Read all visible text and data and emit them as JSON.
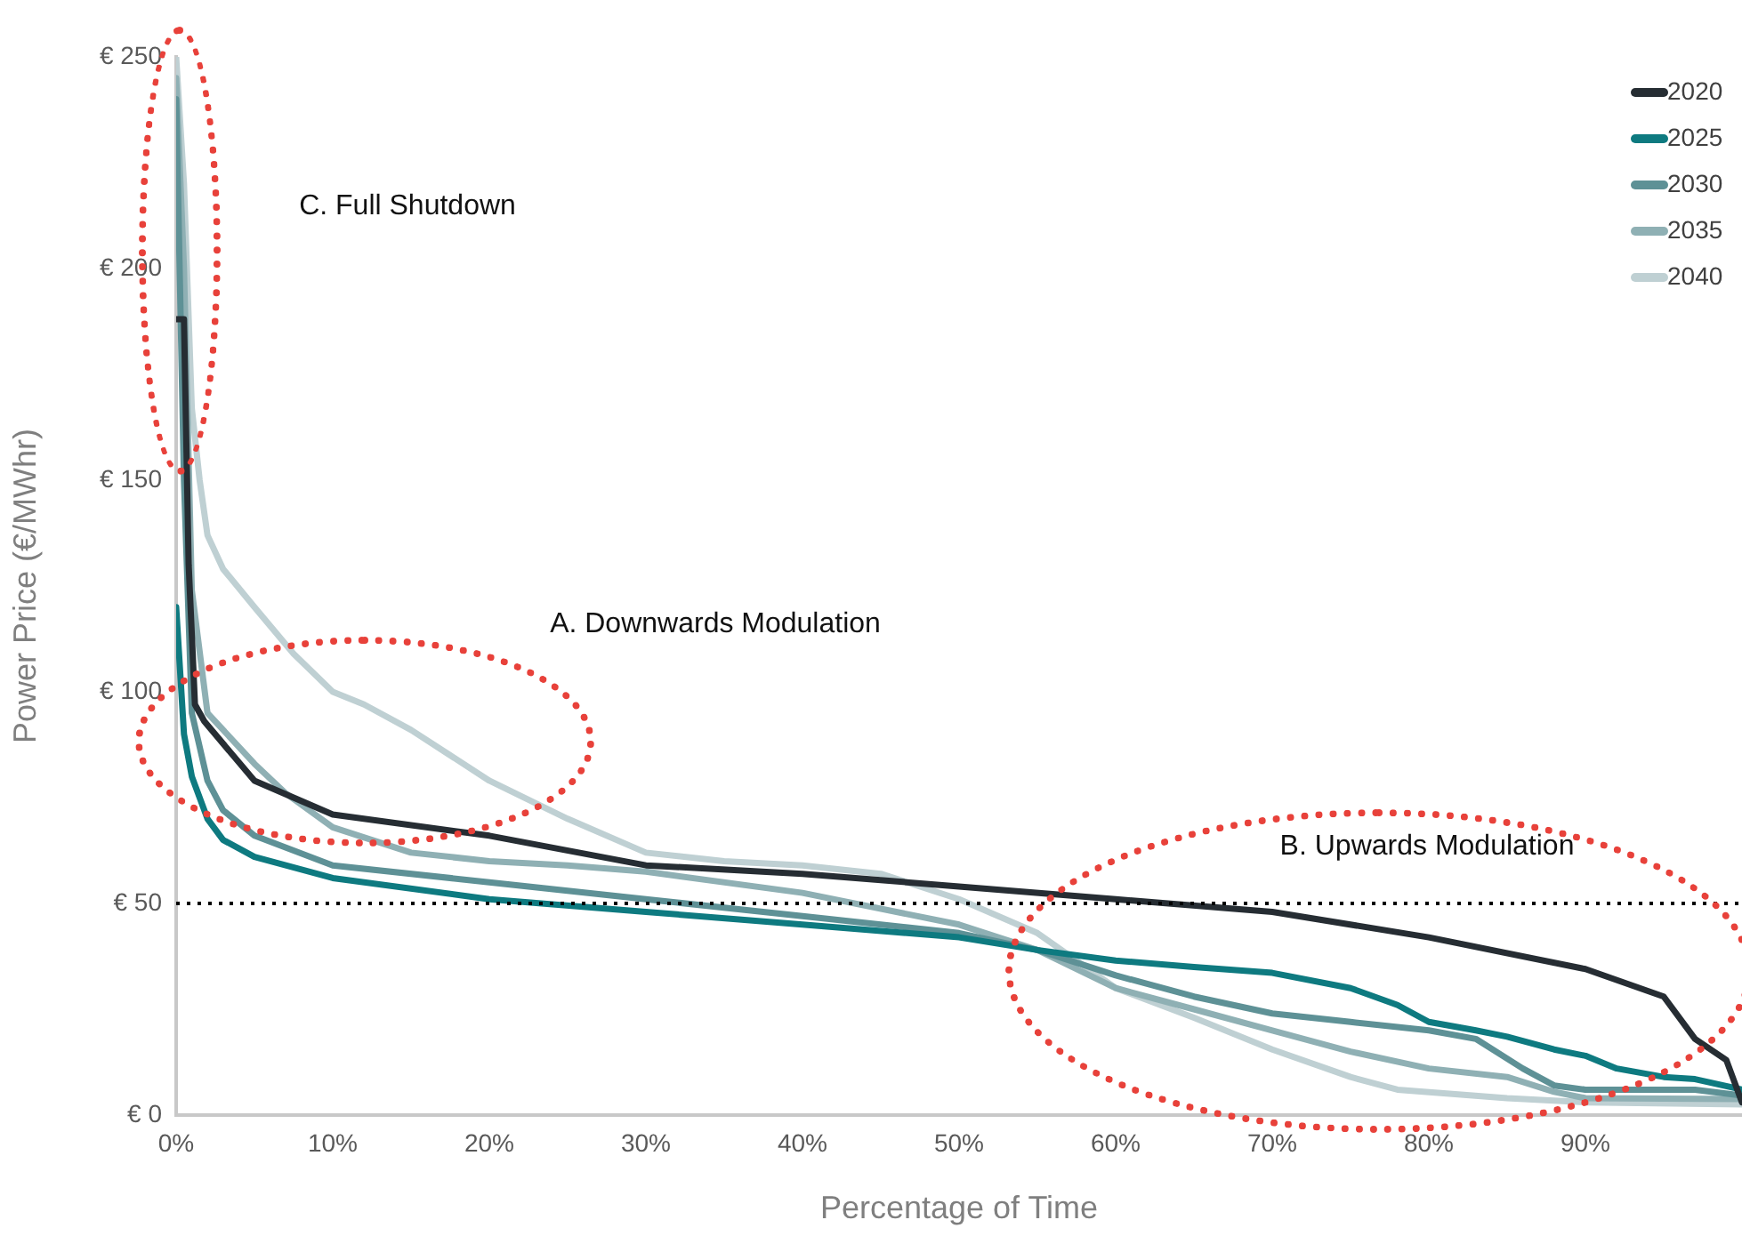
{
  "chart_data": {
    "type": "line",
    "xlabel": "Percentage of Time",
    "ylabel": "Power Price (€/MWhr)",
    "xlim": [
      0,
      100
    ],
    "xticks": [
      {
        "value": 0,
        "label": "0%"
      },
      {
        "value": 10,
        "label": "10%"
      },
      {
        "value": 20,
        "label": "20%"
      },
      {
        "value": 30,
        "label": "30%"
      },
      {
        "value": 40,
        "label": "40%"
      },
      {
        "value": 50,
        "label": "50%"
      },
      {
        "value": 60,
        "label": "60%"
      },
      {
        "value": 70,
        "label": "70%"
      },
      {
        "value": 80,
        "label": "80%"
      },
      {
        "value": 90,
        "label": "90%"
      }
    ],
    "ylim": [
      0,
      250
    ],
    "yticks": [
      {
        "value": 0,
        "label": "€ 0"
      },
      {
        "value": 50,
        "label": "€ 50"
      },
      {
        "value": 100,
        "label": "€ 100"
      },
      {
        "value": 150,
        "label": "€ 150"
      },
      {
        "value": 200,
        "label": "€ 200"
      },
      {
        "value": 250,
        "label": "€ 250"
      }
    ],
    "grid": false,
    "legend": "top right",
    "ref_lines": [
      {
        "axis": "y",
        "value": 50,
        "color": "#000000",
        "line_style": "dotted"
      }
    ],
    "annotations": [
      "C. Full Shutdown",
      "A. Downwards Modulation",
      "B. Upwards Modulation"
    ],
    "series": [
      {
        "name": "2020",
        "color": "#262d33",
        "x": [
          0,
          0.5,
          0.8,
          1.2,
          1.8,
          5,
          10,
          20,
          30,
          40,
          50,
          60,
          70,
          80,
          90,
          95,
          97,
          99,
          100
        ],
        "values": [
          188,
          188,
          130,
          97,
          93,
          79,
          71,
          66,
          59,
          57,
          54,
          51,
          48,
          42,
          34.5,
          28,
          18,
          13,
          3
        ]
      },
      {
        "name": "2025",
        "color": "#0e7a80",
        "x": [
          0,
          0.5,
          1,
          2,
          3,
          5,
          10,
          20,
          30,
          40,
          50,
          55,
          60,
          65,
          70,
          75,
          78,
          80,
          83,
          85,
          88,
          90,
          92,
          95,
          97,
          100
        ],
        "values": [
          120,
          90,
          80,
          70,
          65,
          61,
          56,
          51,
          48,
          45,
          42,
          39,
          36.5,
          35,
          33.6,
          30,
          26,
          22,
          20,
          18.5,
          15.5,
          14,
          11,
          9,
          8.5,
          6
        ]
      },
      {
        "name": "2030",
        "color": "#5e9196",
        "x": [
          0,
          0.5,
          1,
          2,
          3,
          5,
          10,
          20,
          30,
          40,
          50,
          55,
          60,
          65,
          70,
          75,
          80,
          83,
          86,
          88,
          90,
          95,
          97,
          100
        ],
        "values": [
          240,
          150,
          95,
          79,
          72,
          66,
          59,
          55,
          51,
          47,
          43,
          39,
          33,
          28,
          24,
          22,
          20,
          18,
          11,
          7,
          6,
          6,
          6,
          4.6
        ]
      },
      {
        "name": "2035",
        "color": "#8fb0b4",
        "x": [
          0,
          0.5,
          1,
          2,
          5,
          7,
          10,
          15,
          20,
          25,
          30,
          40,
          50,
          55,
          60,
          65,
          70,
          75,
          80,
          85,
          88,
          90,
          100
        ],
        "values": [
          245,
          200,
          124,
          95,
          83,
          76,
          68,
          62,
          60,
          59,
          57.5,
          52.5,
          45,
          39,
          30,
          25,
          20,
          15,
          11,
          9,
          5.5,
          4,
          3.8
        ]
      },
      {
        "name": "2040",
        "color": "#bfd0d3",
        "x": [
          0,
          0.5,
          1,
          1.5,
          2,
          3,
          5,
          7.5,
          10,
          12,
          15,
          20,
          25,
          30,
          35,
          40,
          45,
          50,
          55,
          60,
          65,
          70,
          75,
          78,
          85,
          90,
          100
        ],
        "values": [
          250,
          220,
          167,
          150,
          137,
          129,
          120,
          109,
          100,
          97,
          91,
          79,
          70,
          62,
          60,
          59,
          57,
          51,
          43,
          30,
          23,
          15.5,
          9,
          6,
          4,
          3,
          2.5
        ]
      }
    ]
  }
}
